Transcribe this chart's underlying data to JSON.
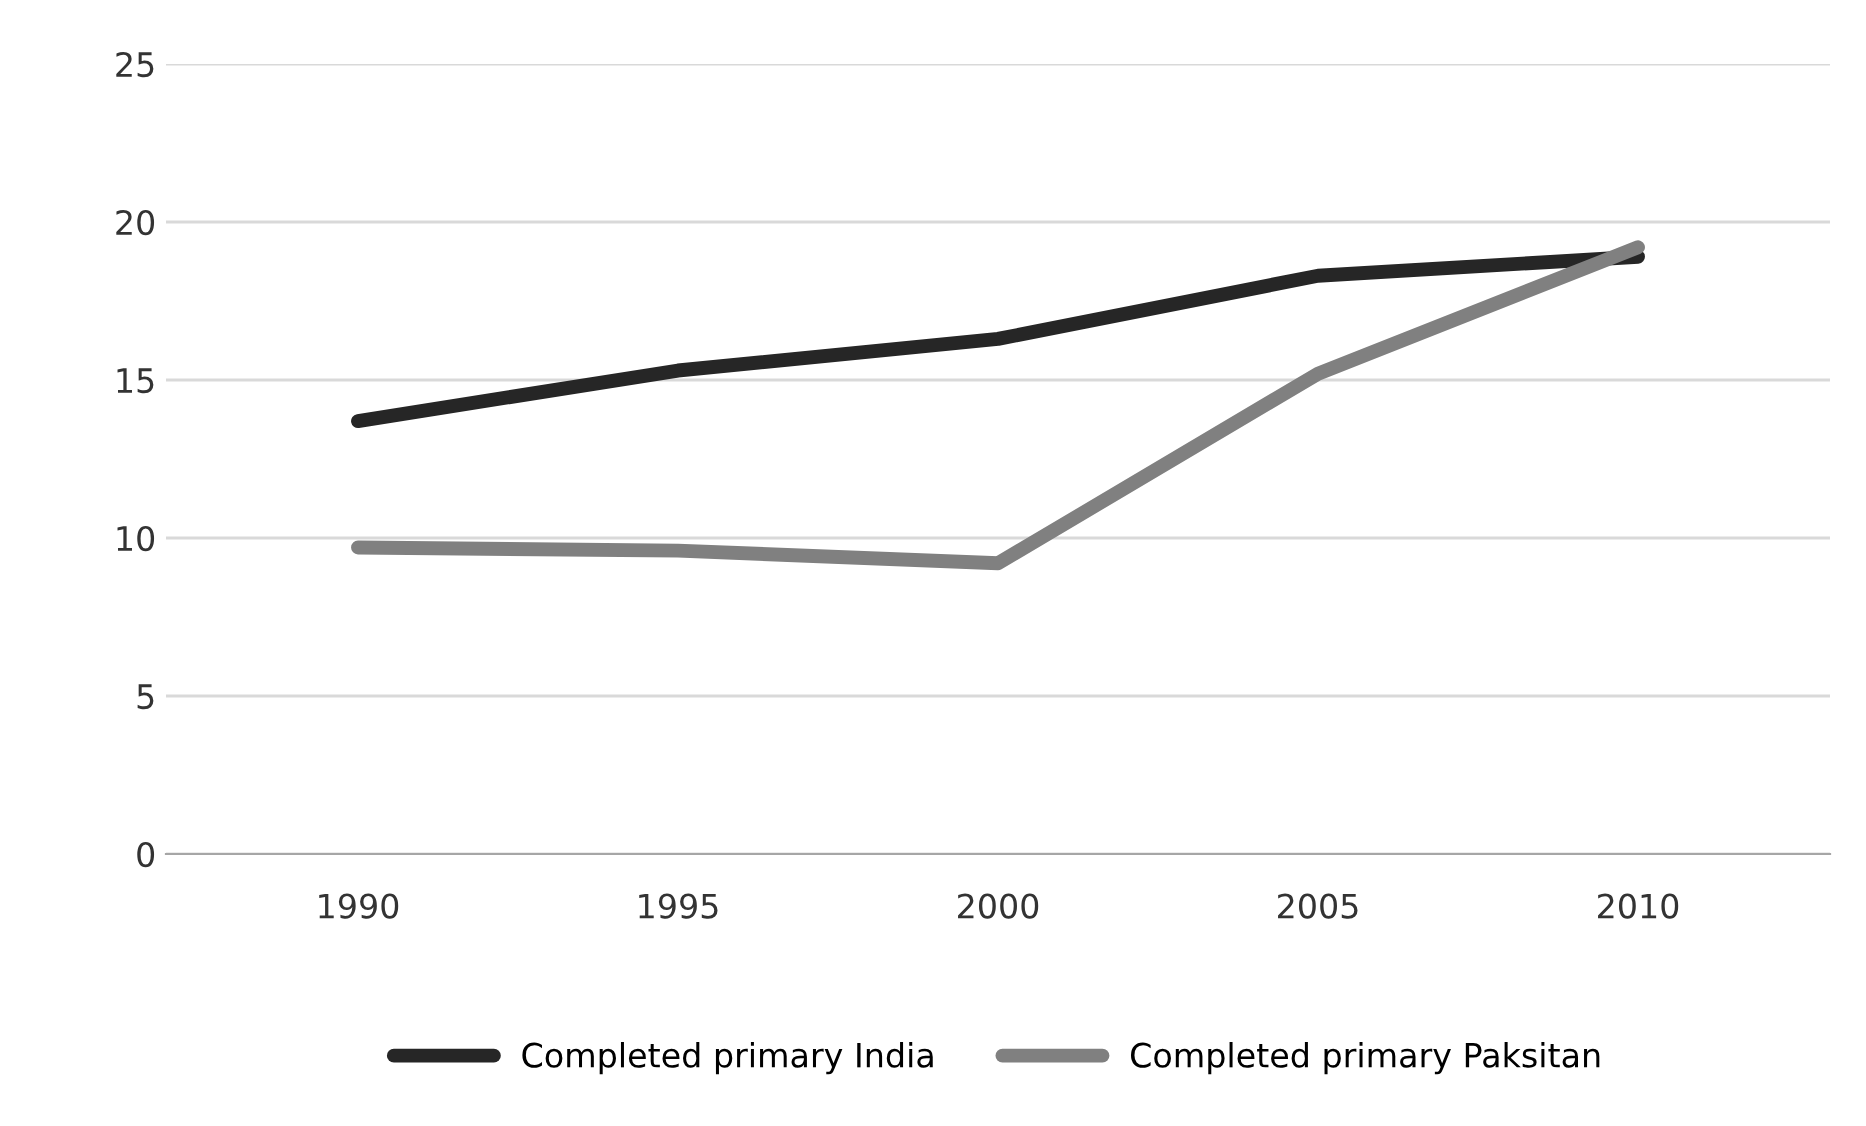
{
  "chart_data": {
    "type": "line",
    "categories": [
      "1990",
      "1995",
      "2000",
      "2005",
      "2010"
    ],
    "series": [
      {
        "name": "Completed primary India",
        "color": "#262626",
        "values": [
          13.7,
          15.3,
          16.3,
          18.3,
          18.9
        ]
      },
      {
        "name": "Completed primary Paksitan",
        "color": "#808080",
        "values": [
          9.7,
          9.6,
          9.2,
          15.2,
          19.2
        ]
      }
    ],
    "ylim": [
      0,
      25
    ],
    "yticks": [
      0,
      5,
      10,
      15,
      20,
      25
    ],
    "grid": "y",
    "legend": "bottom",
    "marker": "none",
    "line_style": "solid"
  }
}
